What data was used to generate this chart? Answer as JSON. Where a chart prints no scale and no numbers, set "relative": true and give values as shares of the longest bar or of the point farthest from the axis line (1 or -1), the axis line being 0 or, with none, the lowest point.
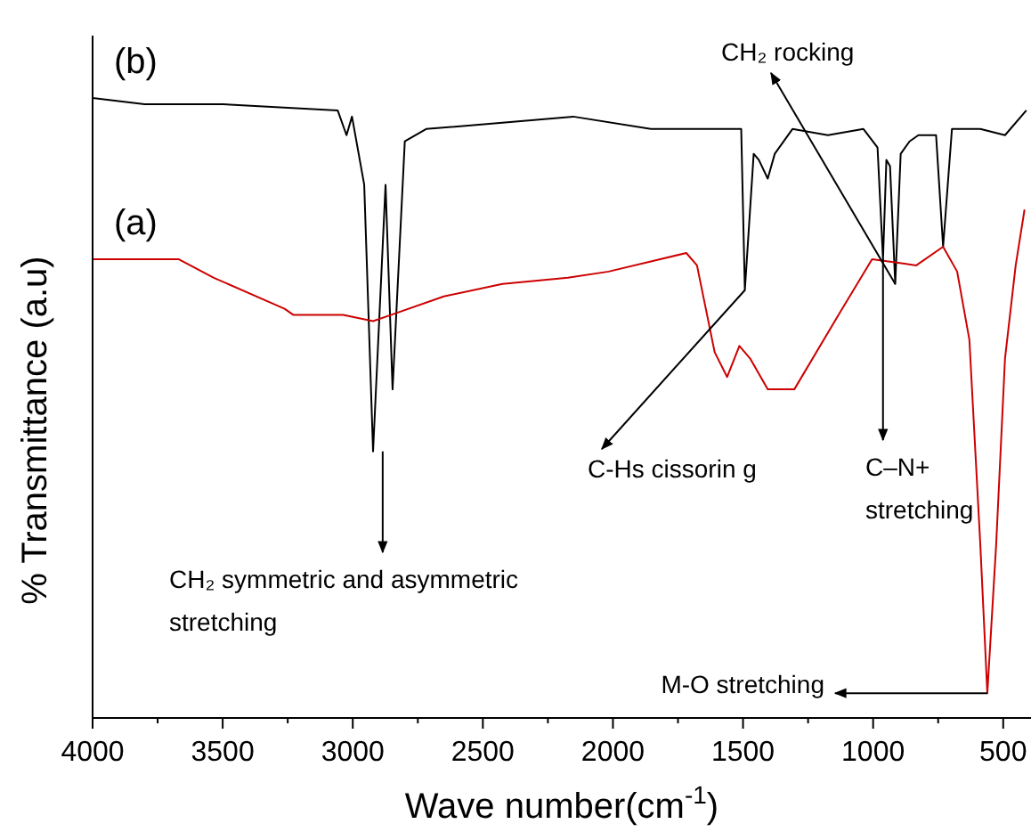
{
  "chart_data": {
    "type": "line",
    "relative": true,
    "xlabel": "Wave number(cm$^{-1}$)",
    "ylabel": "% Transmittance (a.u)",
    "xlim": [
      4000,
      400
    ],
    "xticks": [
      4000,
      {
        "value": 3750,
        "label": null
      },
      3500,
      {
        "value": 3250,
        "label": null
      },
      3000,
      {
        "value": 2750,
        "label": null
      },
      2500,
      {
        "value": 2250,
        "label": null
      },
      2000,
      {
        "value": 1750,
        "label": null
      },
      1500,
      {
        "value": 1250,
        "label": null
      },
      1000,
      {
        "value": 750,
        "label": null
      },
      500
    ],
    "series": [
      {
        "name": "(b)",
        "color": "#000000",
        "x": [
          4000,
          3800,
          3500,
          3058,
          3024,
          3003,
          2956,
          2922,
          2874,
          2847,
          2800,
          2718,
          2425,
          2153,
          1854,
          1507,
          1493,
          1459,
          1439,
          1405,
          1378,
          1310,
          1174,
          1037,
          983,
          962,
          949,
          935,
          915,
          894,
          860,
          826,
          758,
          731,
          697,
          588,
          493,
          411
        ],
        "values": [
          1.0,
          0.99,
          0.99,
          0.98,
          0.94,
          0.97,
          0.86,
          0.43,
          0.86,
          0.53,
          0.93,
          0.95,
          0.96,
          0.97,
          0.95,
          0.95,
          0.69,
          0.91,
          0.9,
          0.87,
          0.91,
          0.95,
          0.94,
          0.95,
          0.92,
          0.74,
          0.9,
          0.89,
          0.7,
          0.91,
          0.93,
          0.94,
          0.94,
          0.76,
          0.95,
          0.95,
          0.94,
          0.98
        ]
      },
      {
        "name": "(a)",
        "color": "#cc0000",
        "x": [
          4000,
          3670,
          3534,
          3262,
          3228,
          3037,
          2922,
          2854,
          2650,
          2425,
          2173,
          2017,
          1718,
          1677,
          1609,
          1561,
          1514,
          1473,
          1405,
          1303,
          1133,
          1004,
          834,
          731,
          677,
          630,
          588,
          561,
          527,
          493,
          452,
          418
        ],
        "values": [
          0.74,
          0.74,
          0.71,
          0.66,
          0.65,
          0.65,
          0.64,
          0.65,
          0.68,
          0.7,
          0.71,
          0.72,
          0.75,
          0.73,
          0.59,
          0.55,
          0.6,
          0.58,
          0.53,
          0.53,
          0.65,
          0.74,
          0.73,
          0.76,
          0.72,
          0.61,
          0.28,
          0.04,
          0.28,
          0.58,
          0.73,
          0.82
        ]
      }
    ],
    "annotations": [
      {
        "text": "CH₂ symmetric and asymmetric stretching",
        "x": 2885,
        "y": 0.43
      },
      {
        "text": "C-Hs  cissorin g",
        "x": 1493,
        "y": 0.69
      },
      {
        "text": "CH₂ rocking",
        "x": 915,
        "y": 0.7
      },
      {
        "text": "C–N+ stretching",
        "x": 962,
        "y": 0.74
      },
      {
        "text": "M-O stretching",
        "x": 561,
        "y": 0.04
      }
    ]
  }
}
